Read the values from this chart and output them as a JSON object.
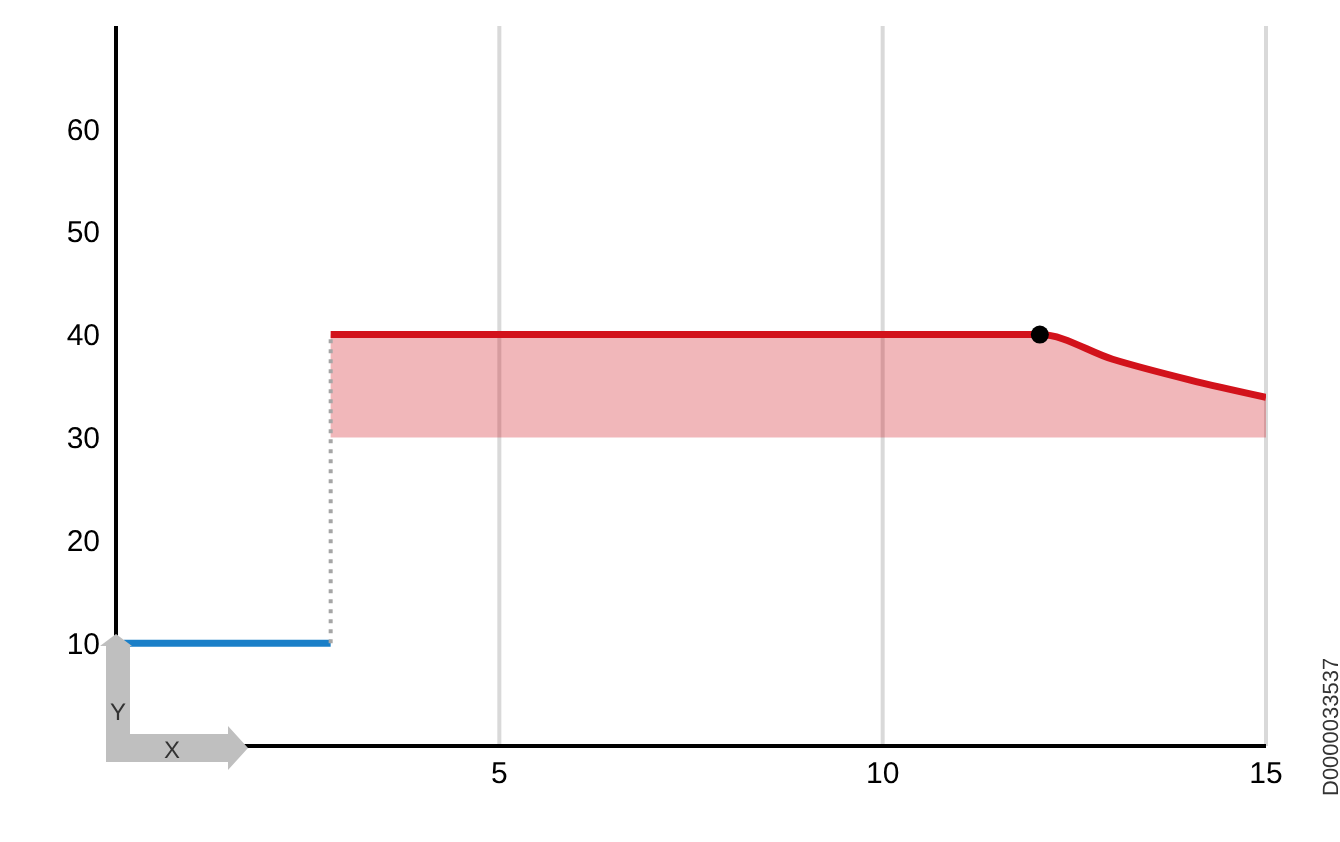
{
  "chart_data": {
    "type": "line",
    "xlabel": "X",
    "ylabel": "Y",
    "xlim": [
      0,
      15
    ],
    "xticks": [
      5,
      10,
      15
    ],
    "ylim": [
      0,
      70
    ],
    "yticks": [
      10,
      20,
      30,
      40,
      50,
      60
    ],
    "grid": "x",
    "marker": "none",
    "series": [
      {
        "color": "#1a7fc8",
        "x": [
          0.1,
          2.8
        ],
        "values": [
          10,
          10
        ]
      },
      {
        "color": "#a6a6a6",
        "line_style": "dotted",
        "x": [
          2.8,
          2.8
        ],
        "values": [
          10,
          40
        ]
      },
      {
        "color": "#d2121b",
        "x": [
          2.8,
          12.05,
          13,
          14,
          15
        ],
        "values": [
          40,
          40,
          37.6,
          35.6,
          33.9
        ],
        "lower": [
          30,
          30,
          30,
          30,
          30
        ],
        "upper": [
          40,
          40,
          37.6,
          35.6,
          33.9
        ]
      },
      {
        "type": "scatter",
        "marker": "circle",
        "color": "#000000",
        "x": [
          12.05
        ],
        "values": [
          40
        ]
      }
    ],
    "annotations": [
      "D0000033537"
    ]
  }
}
